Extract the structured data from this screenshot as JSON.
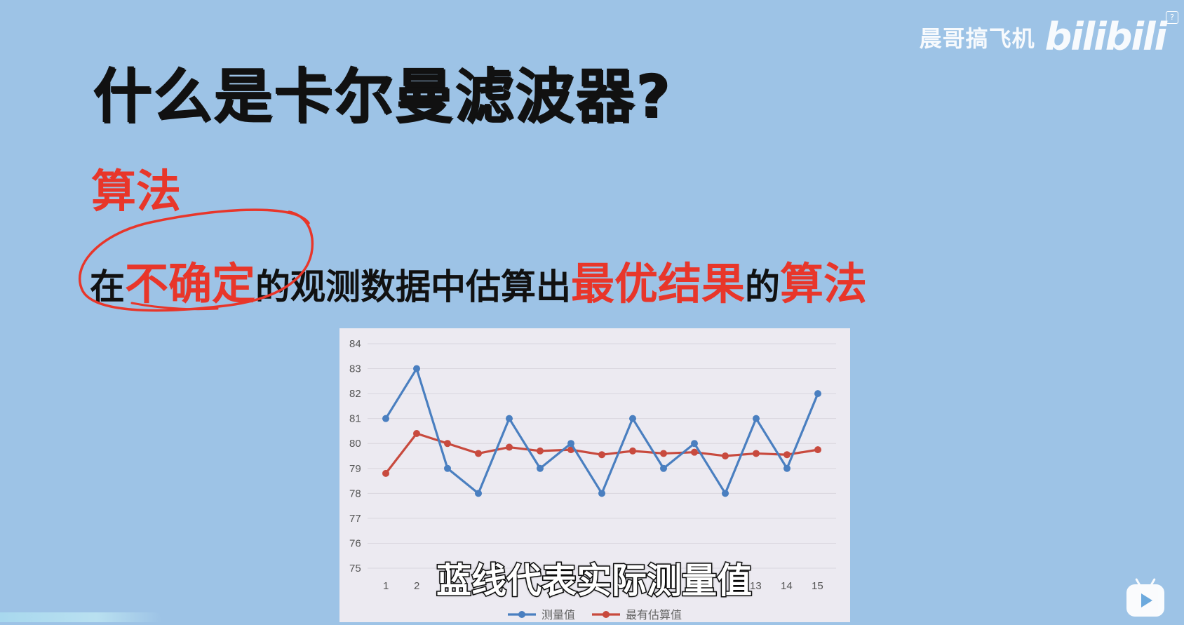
{
  "watermark": {
    "author": "晨哥搞飞机",
    "logo": "bilibili",
    "help": "?"
  },
  "slide": {
    "title": "什么是卡尔曼滤波器?",
    "heading": "算法",
    "definition": {
      "p1": "在",
      "p2": "不确定",
      "p3": "的观测数据中估算出",
      "p4": "最优结果",
      "p5": "的",
      "p6": "算法"
    }
  },
  "subtitle": "蓝线代表实际测量值",
  "chart_data": {
    "type": "line",
    "x": [
      1,
      2,
      3,
      4,
      5,
      6,
      7,
      8,
      9,
      10,
      11,
      12,
      13,
      14,
      15
    ],
    "x_tick_labels_visible": [
      "1",
      "2",
      "13",
      "14",
      "15"
    ],
    "y_ticks": [
      "84",
      "83",
      "82",
      "81",
      "80",
      "79",
      "78",
      "77",
      "76",
      "75"
    ],
    "ylim": [
      75,
      84
    ],
    "grid": true,
    "legend_position": "bottom",
    "series": [
      {
        "name": "测量值",
        "color": "#4a7fc0",
        "values": [
          81,
          83,
          79,
          78,
          81,
          79,
          80,
          78,
          81,
          79,
          80,
          78,
          81,
          79,
          82
        ]
      },
      {
        "name": "最有估算值",
        "color": "#c84a3e",
        "values": [
          78.8,
          80.4,
          80.0,
          79.6,
          79.85,
          79.7,
          79.75,
          79.55,
          79.7,
          79.6,
          79.65,
          79.5,
          79.6,
          79.55,
          79.75
        ]
      }
    ]
  }
}
